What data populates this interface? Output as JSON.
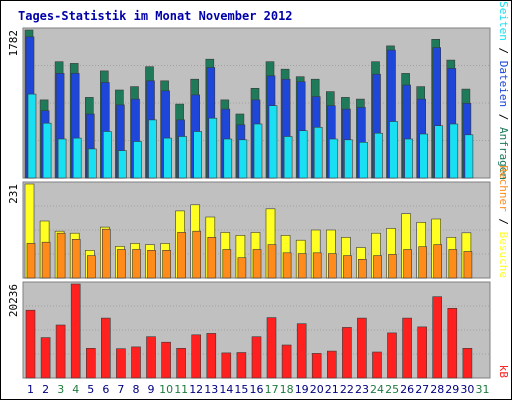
{
  "chart_data": {
    "type": "bar",
    "title": "Tages-Statistik im Monat November 2012",
    "categories": [
      "1",
      "2",
      "3",
      "4",
      "5",
      "6",
      "7",
      "8",
      "9",
      "10",
      "11",
      "12",
      "13",
      "14",
      "15",
      "16",
      "17",
      "18",
      "19",
      "20",
      "21",
      "22",
      "23",
      "24",
      "25",
      "26",
      "27",
      "28",
      "29",
      "30",
      "31"
    ],
    "weekend_days": [
      "3",
      "4",
      "10",
      "11",
      "17",
      "18",
      "24",
      "25",
      "31"
    ],
    "panels": [
      {
        "id": "top",
        "max_label": "1782",
        "ylim": [
          0,
          1782
        ],
        "series": [
          {
            "name": "Anfragen",
            "color": "#1f7a5a",
            "values": [
              1782,
              940,
              1400,
              1380,
              970,
              1290,
              1060,
              1100,
              1340,
              1170,
              890,
              1190,
              1430,
              940,
              770,
              1080,
              1400,
              1310,
              1220,
              1190,
              1040,
              970,
              950,
              1400,
              1590,
              1260,
              1100,
              1670,
              1420,
              1070,
              0
            ]
          },
          {
            "name": "Dateien",
            "color": "#1e46d8",
            "values": [
              1700,
              810,
              1260,
              1260,
              770,
              1150,
              880,
              950,
              1170,
              1050,
              700,
              1000,
              1330,
              830,
              640,
              940,
              1230,
              1190,
              1160,
              980,
              870,
              830,
              850,
              1250,
              1540,
              1120,
              950,
              1570,
              1320,
              900,
              0
            ]
          },
          {
            "name": "Seiten",
            "color": "#18e0f2",
            "values": [
              1010,
              660,
              470,
              480,
              350,
              560,
              330,
              440,
              700,
              480,
              500,
              560,
              720,
              470,
              460,
              650,
              870,
              500,
              570,
              610,
              470,
              460,
              430,
              540,
              680,
              470,
              530,
              630,
              650,
              520,
              0
            ]
          }
        ]
      },
      {
        "id": "mid",
        "max_label": "231",
        "ylim": [
          0,
          231
        ],
        "series": [
          {
            "name": "Besuche",
            "color": "#ffff22",
            "values": [
              231,
              140,
              115,
              110,
              68,
              125,
              78,
              85,
              82,
              85,
              165,
              180,
              150,
              112,
              105,
              112,
              170,
              105,
              93,
              118,
              118,
              100,
              75,
              110,
              122,
              158,
              137,
              145,
              100,
              111,
              0
            ]
          },
          {
            "name": "Rechner",
            "color": "#ff8c1a",
            "values": [
              85,
              88,
              110,
              95,
              55,
              120,
              70,
              70,
              68,
              68,
              112,
              115,
              100,
              70,
              50,
              70,
              82,
              62,
              60,
              62,
              60,
              55,
              46,
              55,
              58,
              70,
              77,
              82,
              70,
              65,
              0
            ]
          }
        ]
      },
      {
        "id": "bot",
        "max_label": "20236",
        "ylim": [
          0,
          20236
        ],
        "series": [
          {
            "name": "kB",
            "color": "#ff2020",
            "values": [
              14600,
              8700,
              11400,
              20236,
              6400,
              12900,
              6300,
              6700,
              8900,
              7700,
              6400,
              9300,
              9600,
              5400,
              5500,
              8900,
              13000,
              7100,
              11700,
              5300,
              5800,
              10900,
              12900,
              5600,
              9700,
              12900,
              11000,
              17500,
              15000,
              6400,
              0
            ]
          }
        ]
      }
    ],
    "legend_right": {
      "top": [
        {
          "text": "Anfragen",
          "color": "#1f7a5a"
        },
        {
          "text": "Dateien",
          "color": "#1e46d8"
        },
        {
          "text": "Seiten",
          "color": "#18e0f2"
        }
      ],
      "mid": [
        {
          "text": "Besuche",
          "color": "#ffff22"
        },
        {
          "text": "Rechner",
          "color": "#ff8c1a"
        }
      ],
      "bot": [
        {
          "text": "kB",
          "color": "#ff2020"
        }
      ],
      "separator": " / "
    },
    "colors": {
      "title": "#0000aa",
      "plot_bg": "#c0c0c0",
      "frame": "#808080",
      "weekday_label": "#000080",
      "weekend_label": "#1f7a3f"
    }
  }
}
